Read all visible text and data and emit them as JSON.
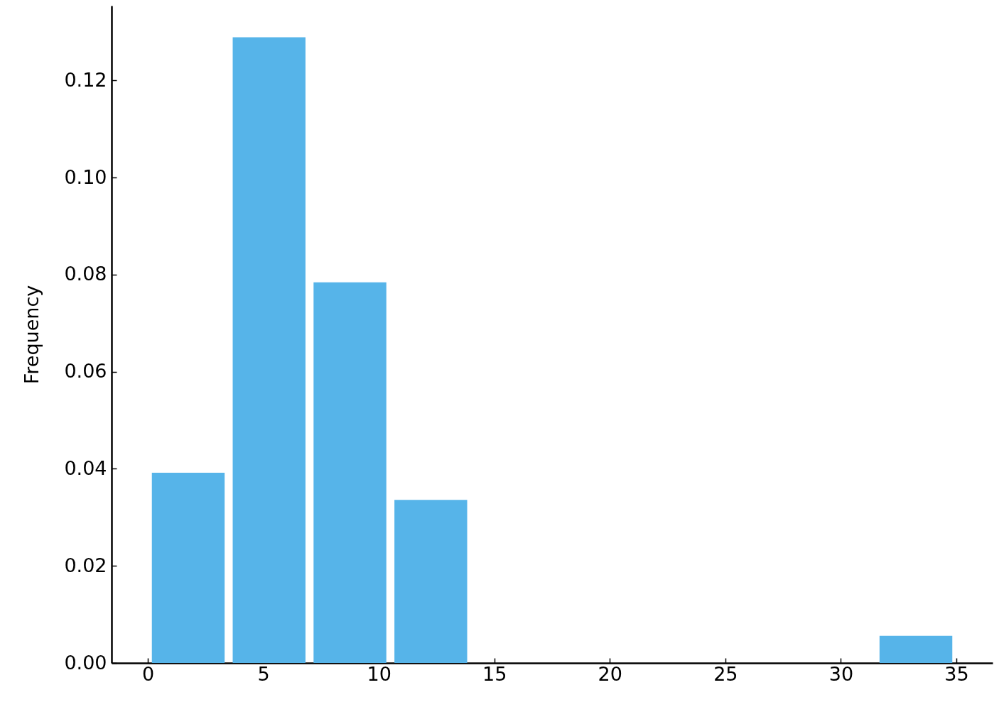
{
  "chart_data": {
    "type": "histogram",
    "ylabel": "Frequency",
    "bins": [
      0,
      3.5,
      7,
      10.5,
      14,
      17.5,
      21,
      24.5,
      28,
      31.5,
      35
    ],
    "values": [
      0.0392,
      0.1289,
      0.0784,
      0.0336,
      0,
      0,
      0,
      0,
      0,
      0.0056
    ],
    "color": "#56b4e9",
    "xlim": [
      -1.57,
      36.57
    ],
    "xticks": [
      0,
      5,
      10,
      15,
      20,
      25,
      30,
      35
    ],
    "ylim": [
      0,
      0.1354
    ],
    "yticks": [
      {
        "value": 0,
        "label": "0.00"
      },
      0.02,
      0.04,
      0.06,
      0.08,
      {
        "value": 0.1,
        "label": "0.10"
      },
      0.12
    ]
  }
}
